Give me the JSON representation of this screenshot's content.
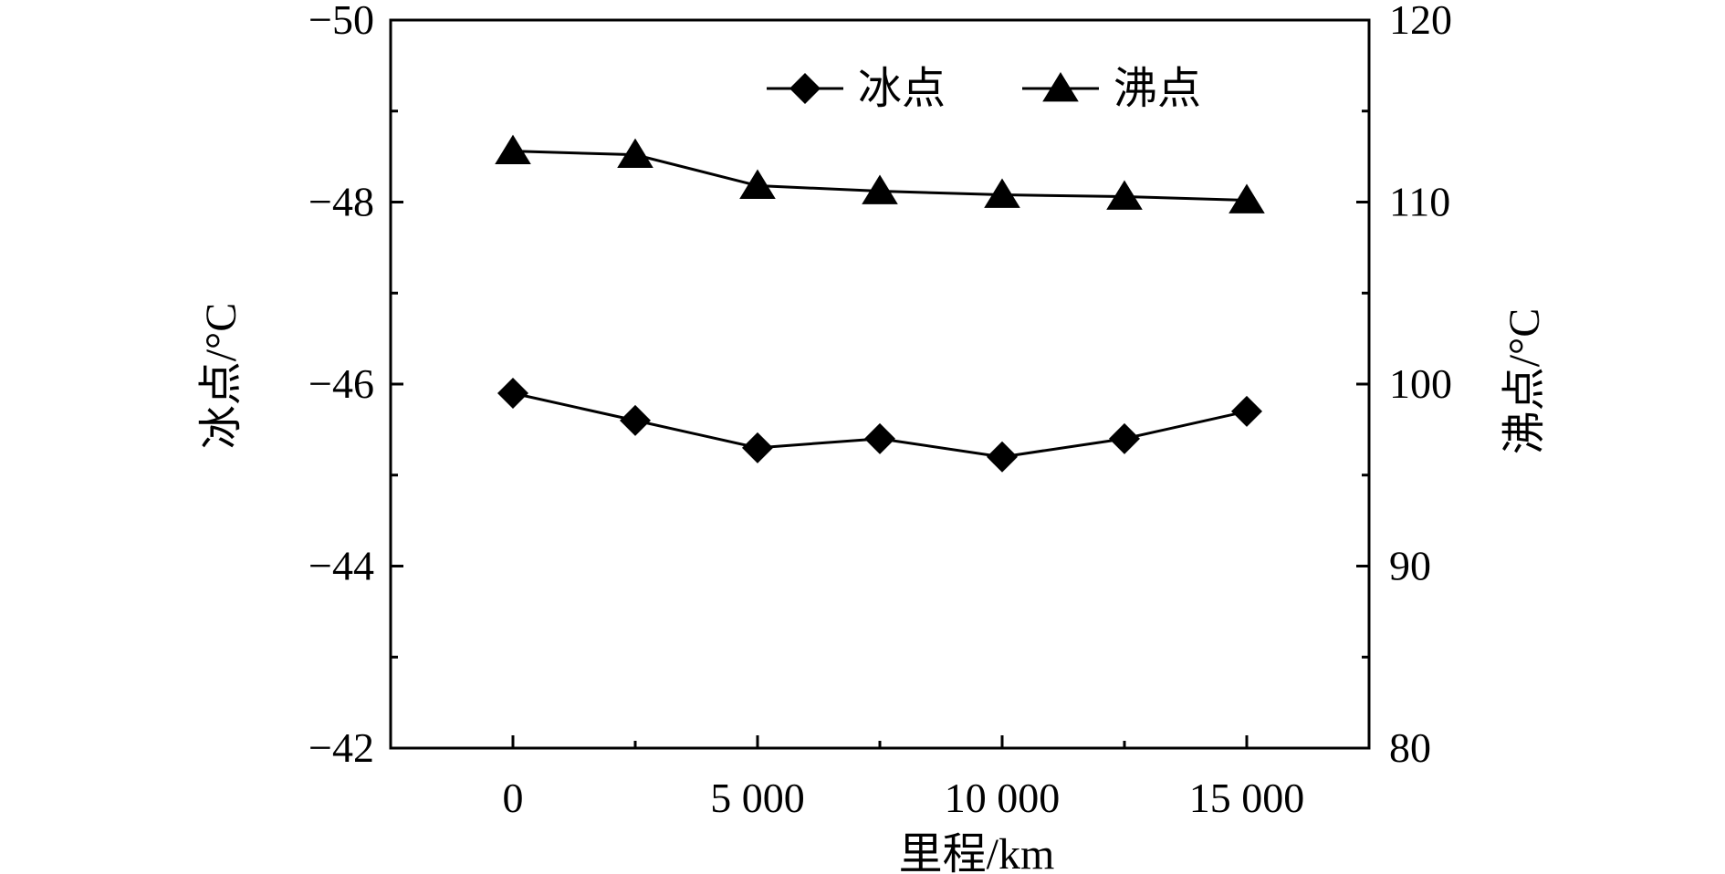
{
  "chart_data": {
    "type": "line",
    "xlabel": "里程/km",
    "ylabel_left": "冰点/°C",
    "ylabel_right": "沸点/°C",
    "x_ticks": [
      0,
      5000,
      10000,
      15000
    ],
    "x_tick_labels": [
      "0",
      "5 000",
      "10 000",
      "15 000"
    ],
    "xlim": [
      -2500,
      17500
    ],
    "y_left_lim": [
      -42,
      -50
    ],
    "y_left_ticks": [
      -50,
      -48,
      -46,
      -44,
      -42
    ],
    "y_left_tick_labels": [
      "−50",
      "−48",
      "−46",
      "−44",
      "−42"
    ],
    "y_right_lim": [
      80,
      120
    ],
    "y_right_ticks": [
      80,
      90,
      100,
      110,
      120
    ],
    "y_right_tick_labels": [
      "80",
      "90",
      "100",
      "110",
      "120"
    ],
    "x": [
      0,
      2500,
      5000,
      7500,
      10000,
      12500,
      15000
    ],
    "series": [
      {
        "name": "冰点",
        "axis": "left",
        "marker": "diamond",
        "values": [
          -45.9,
          -45.6,
          -45.3,
          -45.4,
          -45.2,
          -45.4,
          -45.7
        ]
      },
      {
        "name": "沸点",
        "axis": "right",
        "marker": "triangle",
        "values": [
          112.8,
          112.6,
          110.9,
          110.6,
          110.4,
          110.3,
          110.1
        ]
      }
    ],
    "legend": "top-right",
    "grid": false
  }
}
